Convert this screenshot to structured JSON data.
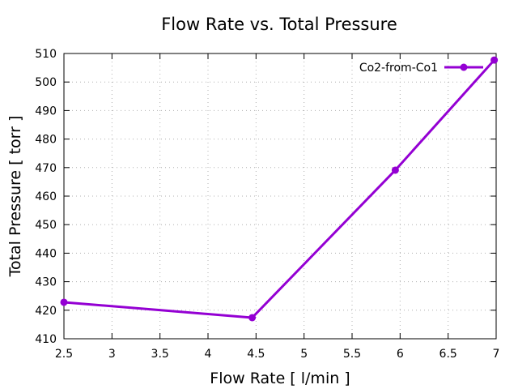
{
  "chart_data": {
    "type": "line",
    "title": "Flow Rate vs. Total Pressure",
    "xlabel": "Flow Rate [ l/min ]",
    "ylabel": "Total Pressure [ torr ]",
    "xlim": [
      2.5,
      7
    ],
    "ylim": [
      410,
      510
    ],
    "xticks": [
      "2.5",
      "3",
      "3.5",
      "4",
      "4.5",
      "5",
      "5.5",
      "6",
      "6.5",
      "7"
    ],
    "yticks": [
      "410",
      "420",
      "430",
      "440",
      "450",
      "460",
      "470",
      "480",
      "490",
      "500",
      "510"
    ],
    "grid": true,
    "legend_position": "top-right",
    "series": [
      {
        "name": "Co2-from-Co1",
        "color": "#9400d3",
        "x": [
          2.5,
          4.46,
          5.95,
          6.98
        ],
        "y": [
          422.8,
          417.4,
          469.1,
          507.7
        ]
      }
    ]
  }
}
